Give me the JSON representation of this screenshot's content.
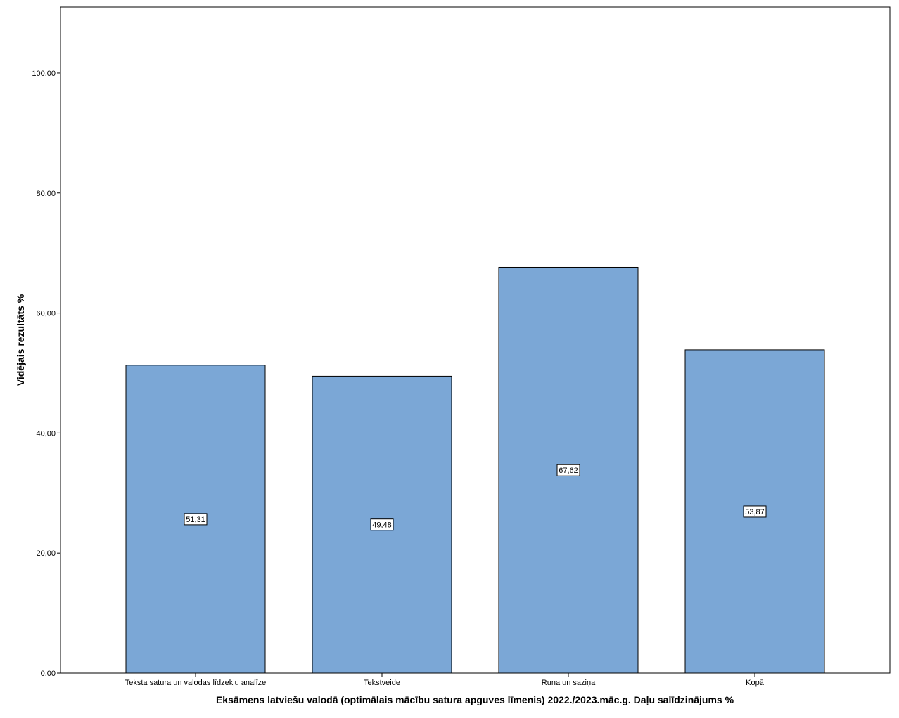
{
  "chart_data": {
    "type": "bar",
    "categories": [
      "Teksta satura un valodas līdzekļu analīze",
      "Tekstveide",
      "Runa un saziņa",
      "Kopā"
    ],
    "values": [
      51.31,
      49.48,
      67.62,
      53.87
    ],
    "data_labels": [
      "51,31",
      "49,48",
      "67,62",
      "53,87"
    ],
    "title": "",
    "xlabel": "Eksāmens latviešu valodā (optimālais mācību satura apguves līmenis) 2022./2023.māc.g. Daļu salīdzinājums %",
    "ylabel": "Vidējais rezultāts %",
    "ylim": [
      0,
      111
    ],
    "yticks": [
      0,
      20,
      40,
      60,
      80,
      100
    ],
    "ytick_labels": [
      "0,00",
      "20,00",
      "40,00",
      "60,00",
      "80,00",
      "100,00"
    ],
    "bar_color": "#7BA7D6",
    "bar_edge_color": "#000000",
    "grid": false,
    "legend": "none"
  }
}
